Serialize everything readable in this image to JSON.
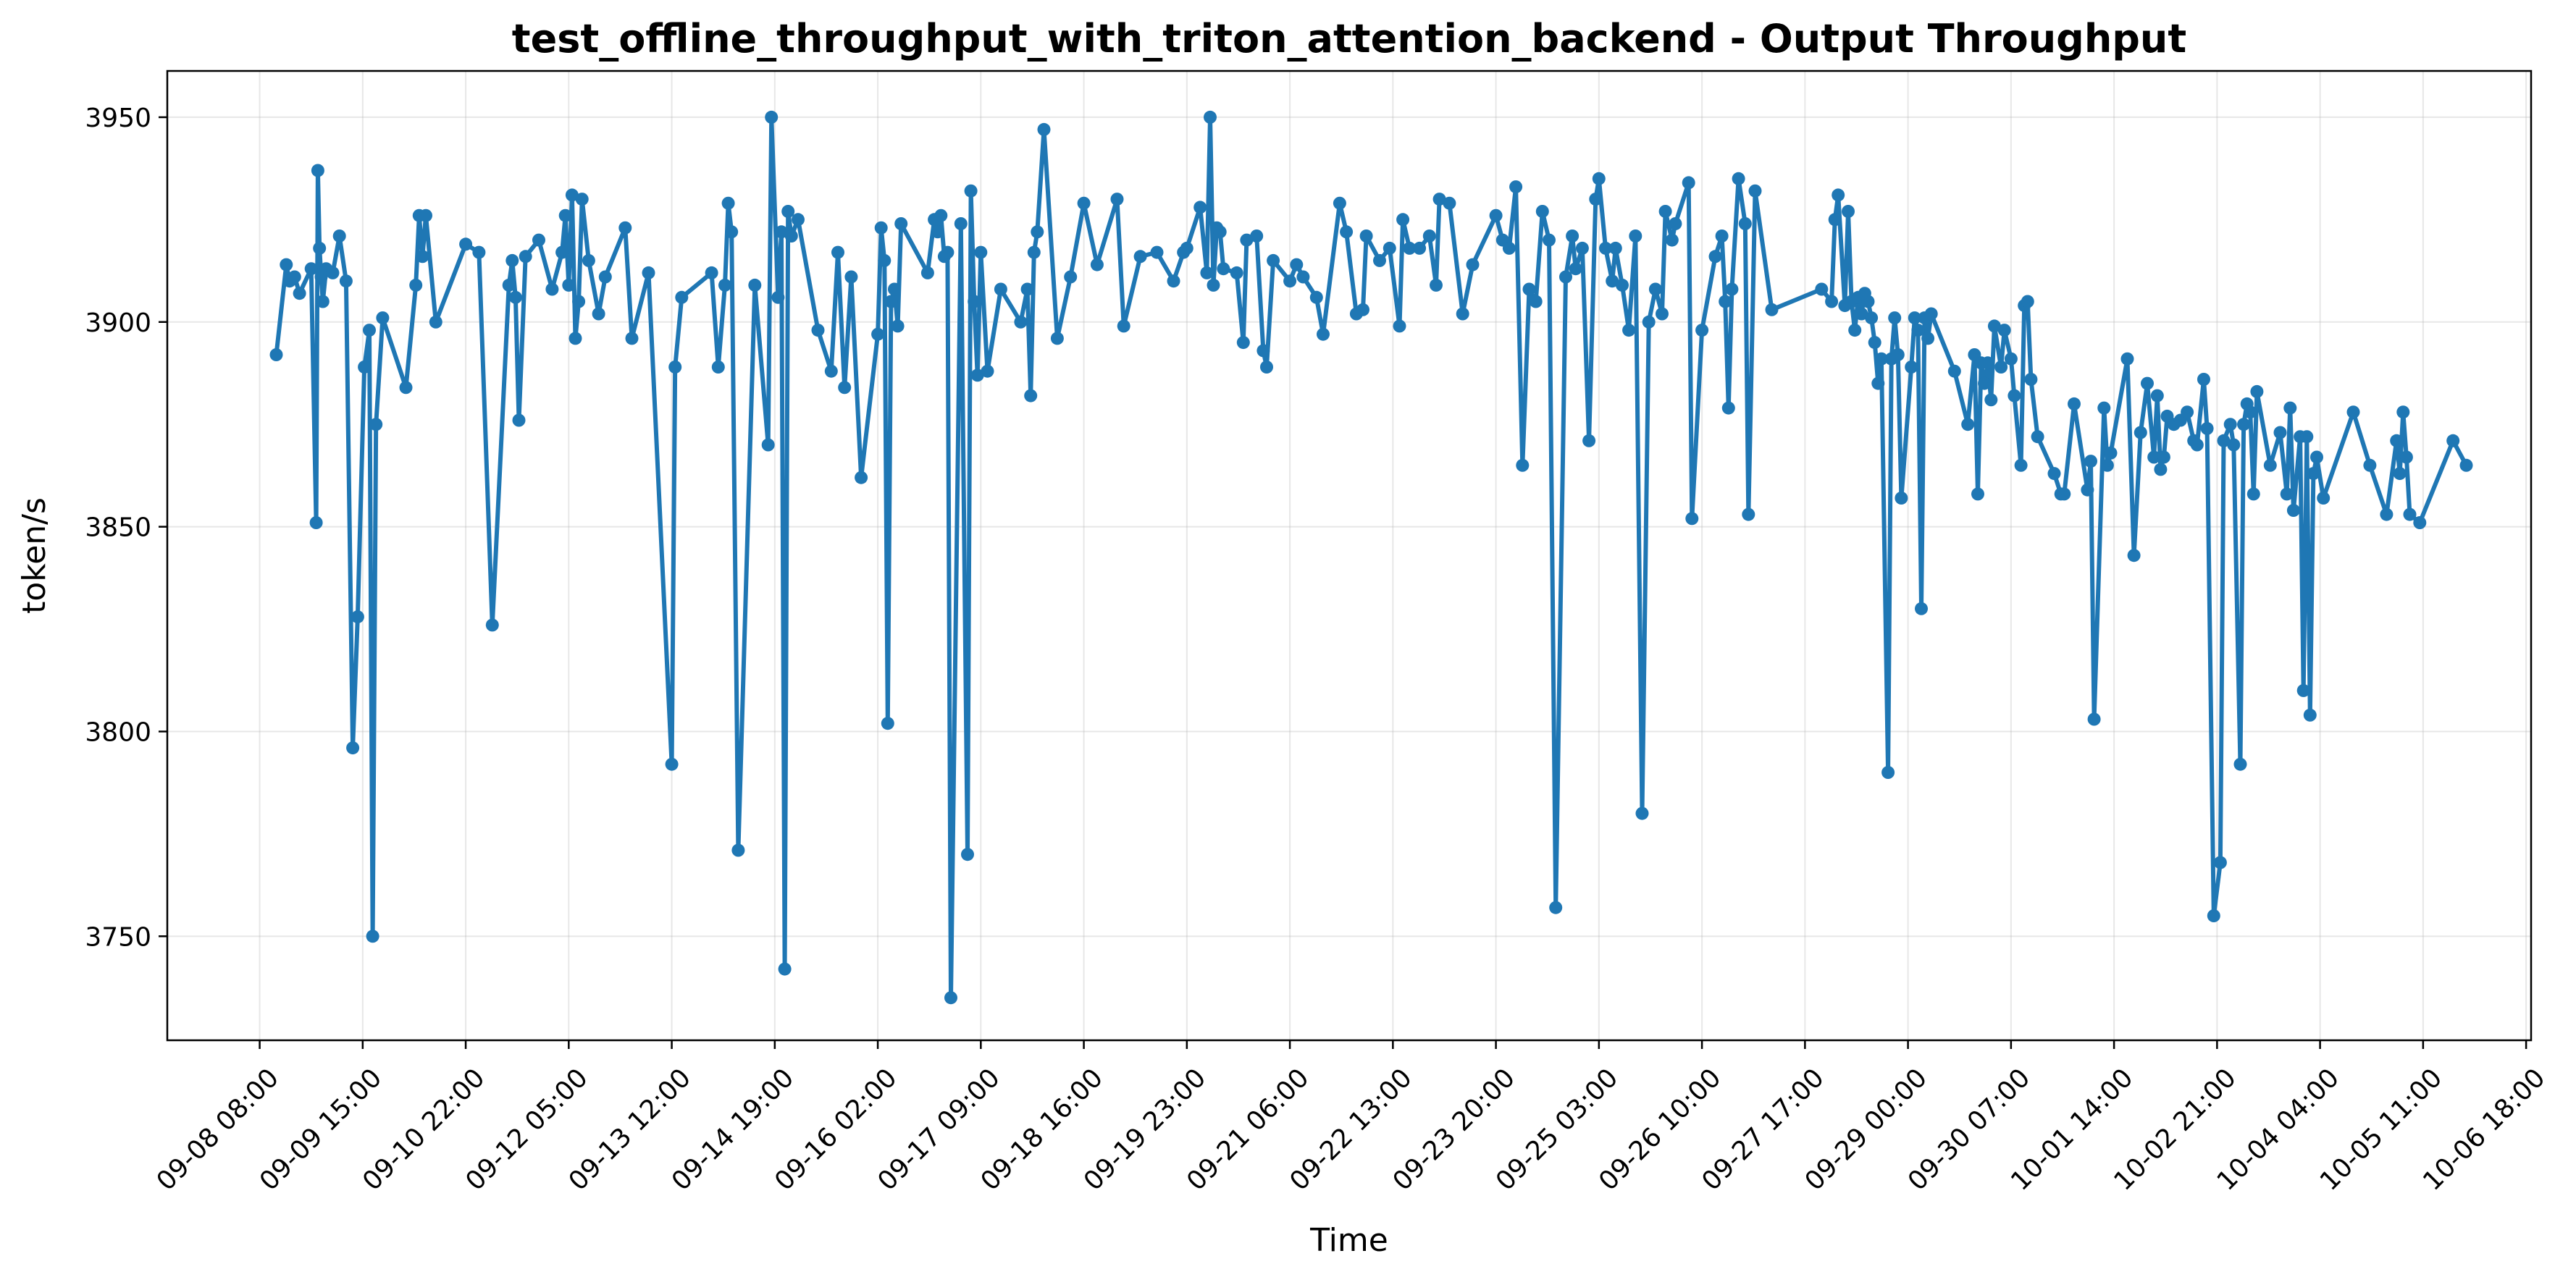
{
  "chart_data": {
    "type": "line",
    "title": "test_offline_throughput_with_triton_attention_backend - Output Throughput",
    "xlabel": "Time",
    "ylabel": "token/s",
    "x_ticks": [
      "09-08 08:00",
      "09-09 15:00",
      "09-10 22:00",
      "09-12 05:00",
      "09-13 12:00",
      "09-14 19:00",
      "09-16 02:00",
      "09-17 09:00",
      "09-18 16:00",
      "09-19 23:00",
      "09-21 06:00",
      "09-22 13:00",
      "09-23 20:00",
      "09-25 03:00",
      "09-26 10:00",
      "09-27 17:00",
      "09-29 00:00",
      "09-30 07:00",
      "10-01 14:00",
      "10-02 21:00",
      "10-04 04:00",
      "10-05 11:00",
      "10-06 18:00"
    ],
    "x_tick_hours": [
      0,
      31,
      62,
      93,
      124,
      155,
      186,
      217,
      248,
      279,
      310,
      341,
      372,
      403,
      434,
      465,
      496,
      527,
      558,
      589,
      620,
      651,
      682
    ],
    "x_origin": "09-08 08:00",
    "xlim_hours": [
      -27.8,
      683.5
    ],
    "y_ticks": [
      3750,
      3800,
      3850,
      3900,
      3950
    ],
    "ylim": [
      3724.6,
      3961.3
    ],
    "grid": true,
    "legend": "none",
    "colors": {
      "series": "#1f77b4",
      "grid": "#b0b0b0",
      "axis": "#000000"
    },
    "series": [
      {
        "color": "#1f77b4",
        "x_hours": [
          5,
          8,
          9,
          10.5,
          12,
          15.5,
          17,
          17.5,
          18,
          18.5,
          19,
          20,
          22,
          24,
          26,
          28,
          29.5,
          31.5,
          33,
          34,
          35,
          37,
          44,
          47,
          48,
          49,
          50,
          53,
          62,
          66,
          70,
          75,
          76,
          77,
          78,
          80,
          84,
          88,
          91,
          92,
          93,
          94,
          95,
          96,
          97,
          99,
          102,
          104,
          110,
          112,
          117,
          124,
          125,
          127,
          136,
          138,
          140,
          141,
          142,
          144,
          149,
          153,
          154,
          156,
          157,
          158,
          159,
          160,
          162,
          168,
          172,
          174,
          176,
          178,
          181,
          186,
          187,
          188,
          189,
          190,
          191,
          192,
          193,
          201,
          203,
          204,
          205,
          206,
          207,
          208,
          211,
          213,
          214,
          215,
          216,
          217,
          219,
          223,
          229,
          231,
          232,
          233,
          234,
          236,
          240,
          244,
          248,
          252,
          258,
          260,
          265,
          270,
          275,
          278,
          279,
          283,
          285,
          286,
          287,
          288,
          289,
          290,
          294,
          296,
          297,
          300,
          302,
          303,
          305,
          310,
          312,
          314,
          318,
          320,
          325,
          327,
          330,
          332,
          333,
          337,
          340,
          343,
          344,
          346,
          349,
          352,
          354,
          355,
          358,
          362,
          365,
          372,
          374,
          376,
          378,
          380,
          382,
          384,
          386,
          388,
          390,
          393,
          395,
          396,
          398,
          400,
          402,
          403,
          405,
          407,
          408,
          410,
          412,
          414,
          416,
          418,
          420,
          422,
          423,
          425,
          426,
          430,
          431,
          434,
          438,
          440,
          441,
          442,
          443,
          445,
          447,
          448,
          450,
          455,
          470,
          473,
          474,
          475,
          477,
          478,
          479,
          480,
          481,
          482,
          483,
          484,
          485,
          486,
          487,
          488,
          490,
          491,
          492,
          493,
          494,
          497,
          498,
          499,
          500,
          501,
          502,
          503,
          510,
          514,
          516,
          517,
          518,
          519,
          520,
          521,
          522,
          524,
          525,
          527,
          528,
          530,
          531,
          532,
          533,
          535,
          540,
          542,
          543,
          546,
          550,
          551,
          552,
          555,
          556,
          557,
          562,
          564,
          566,
          568,
          570,
          571,
          572,
          573,
          574,
          576,
          578,
          580,
          582,
          583,
          585,
          586,
          588,
          590,
          591,
          593,
          594,
          596,
          597,
          598,
          599,
          600,
          601,
          605,
          608,
          610,
          611,
          612,
          614,
          615,
          616,
          617,
          618,
          619,
          621,
          630,
          635,
          640,
          643,
          644,
          645,
          646,
          647,
          650,
          660,
          664
        ]
      }
    ]
  }
}
